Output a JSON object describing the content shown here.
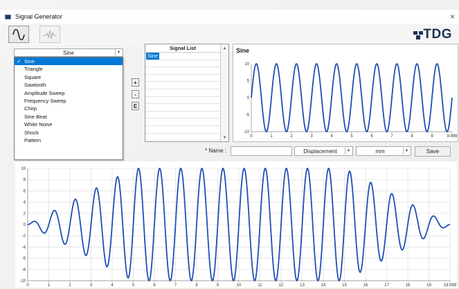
{
  "window": {
    "title": "Signal Generator",
    "close_glyph": "×"
  },
  "toolbar": {
    "logo_text": "TDG",
    "buttons": [
      "sine-wave-icon",
      "random-wave-icon"
    ]
  },
  "signal_type": {
    "selected": "Sine",
    "options": [
      "Sine",
      "Triangle",
      "Square",
      "Sawtooth",
      "Amplitude Sweep",
      "Frequency Sweep",
      "Chirp",
      "Sine Beat",
      "White Noise",
      "Shock",
      "Pattern"
    ]
  },
  "side_buttons": {
    "add": "+",
    "remove": "-",
    "edit": "E"
  },
  "signal_list": {
    "header": "Signal List",
    "items": [
      "Sine"
    ]
  },
  "form": {
    "name_label": "* Name :",
    "name_value": "",
    "quantity": "Displacement",
    "unit": "mm",
    "save_label": "Save"
  },
  "chart_data": [
    {
      "type": "line",
      "title": "Sine",
      "xlabel": "",
      "ylabel": "",
      "xlim": [
        0,
        9.999
      ],
      "ylim": [
        -10,
        10
      ],
      "x_ticks": [
        "0",
        "1",
        "2",
        "3",
        "4",
        "5",
        "6",
        "7",
        "8",
        "9",
        "9.999"
      ],
      "y_ticks": [
        "10",
        "5",
        "0",
        "-5",
        "-10"
      ],
      "grid": false,
      "series": [
        {
          "amplitude": 10,
          "cycles": 10,
          "color": "#1f4fb5"
        }
      ]
    },
    {
      "type": "line",
      "title": "",
      "xlabel": "",
      "ylabel": "",
      "xlim": [
        0,
        19.999
      ],
      "ylim": [
        -10,
        10
      ],
      "x_ticks": [
        "0",
        "1",
        "2",
        "3",
        "4",
        "5",
        "6",
        "7",
        "8",
        "9",
        "10",
        "11",
        "12",
        "13",
        "14",
        "15",
        "16",
        "17",
        "18",
        "19",
        "19.999"
      ],
      "y_ticks": [
        "10",
        "8",
        "6",
        "4",
        "2",
        "0",
        "-2",
        "-4",
        "-6",
        "-8",
        "-10"
      ],
      "grid": true,
      "series": [
        {
          "amplitude_peak": 10,
          "cycles": 20,
          "ramp_up_end": 5,
          "ramp_down_start": 15,
          "color": "#1f4fb5"
        }
      ]
    }
  ]
}
